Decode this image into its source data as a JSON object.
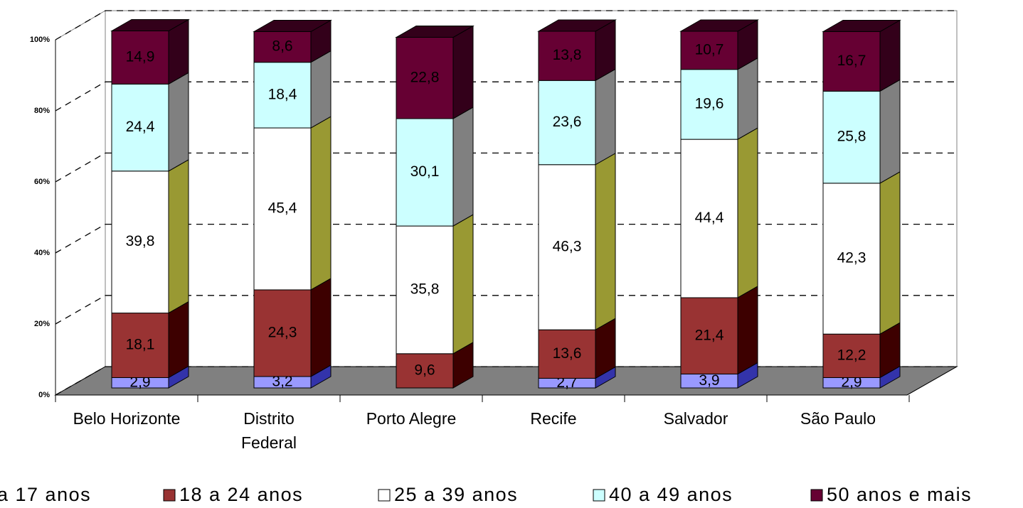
{
  "chart_data": {
    "type": "bar3d_stacked",
    "categories": [
      "Belo Horizonte",
      "Distrito Federal",
      "Porto Alegre",
      "Recife",
      "Salvador",
      "São Paulo"
    ],
    "series": [
      {
        "name": "a 17 anos",
        "color": "#9999ff",
        "side_color": "#3333aa",
        "values": [
          2.9,
          3.2,
          null,
          2.7,
          3.9,
          2.9
        ],
        "value_labels": [
          "2,9",
          "3,2",
          null,
          "2,7",
          "3,9",
          "2,9"
        ]
      },
      {
        "name": "18 a 24 anos",
        "color": "#993333",
        "side_color": "#3d0000",
        "values": [
          18.1,
          24.3,
          9.6,
          13.6,
          21.4,
          12.2
        ],
        "value_labels": [
          "18,1",
          "24,3",
          "9,6",
          "13,6",
          "21,4",
          "12,2"
        ]
      },
      {
        "name": "25 a 39 anos",
        "color": "#ffffff",
        "side_color": "#999933",
        "values": [
          39.8,
          45.4,
          35.8,
          46.3,
          44.4,
          42.3
        ],
        "value_labels": [
          "39,8",
          "45,4",
          "35,8",
          "46,3",
          "44,4",
          "42,3"
        ]
      },
      {
        "name": "40 a 49 anos",
        "color": "#ccffff",
        "side_color": "#808080",
        "values": [
          24.4,
          18.4,
          30.1,
          23.6,
          19.6,
          25.8
        ],
        "value_labels": [
          "24,4",
          "18,4",
          "30,1",
          "23,6",
          "19,6",
          "25,8"
        ]
      },
      {
        "name": "50 anos e mais",
        "color": "#660033",
        "side_color": "#33001a",
        "values": [
          14.9,
          8.6,
          22.8,
          13.8,
          10.7,
          16.7
        ],
        "value_labels": [
          "14,9",
          "8,6",
          "22,8",
          "13,8",
          "10,7",
          "16,7"
        ]
      }
    ],
    "ylim": [
      0,
      100
    ],
    "yticks": [
      {
        "value": 0,
        "label": "0%"
      },
      {
        "value": 20,
        "label": "20%"
      },
      {
        "value": 40,
        "label": "40%"
      },
      {
        "value": 60,
        "label": "60%"
      },
      {
        "value": 80,
        "label": "80%"
      },
      {
        "value": 100,
        "label": "100%"
      }
    ],
    "grid": true
  }
}
